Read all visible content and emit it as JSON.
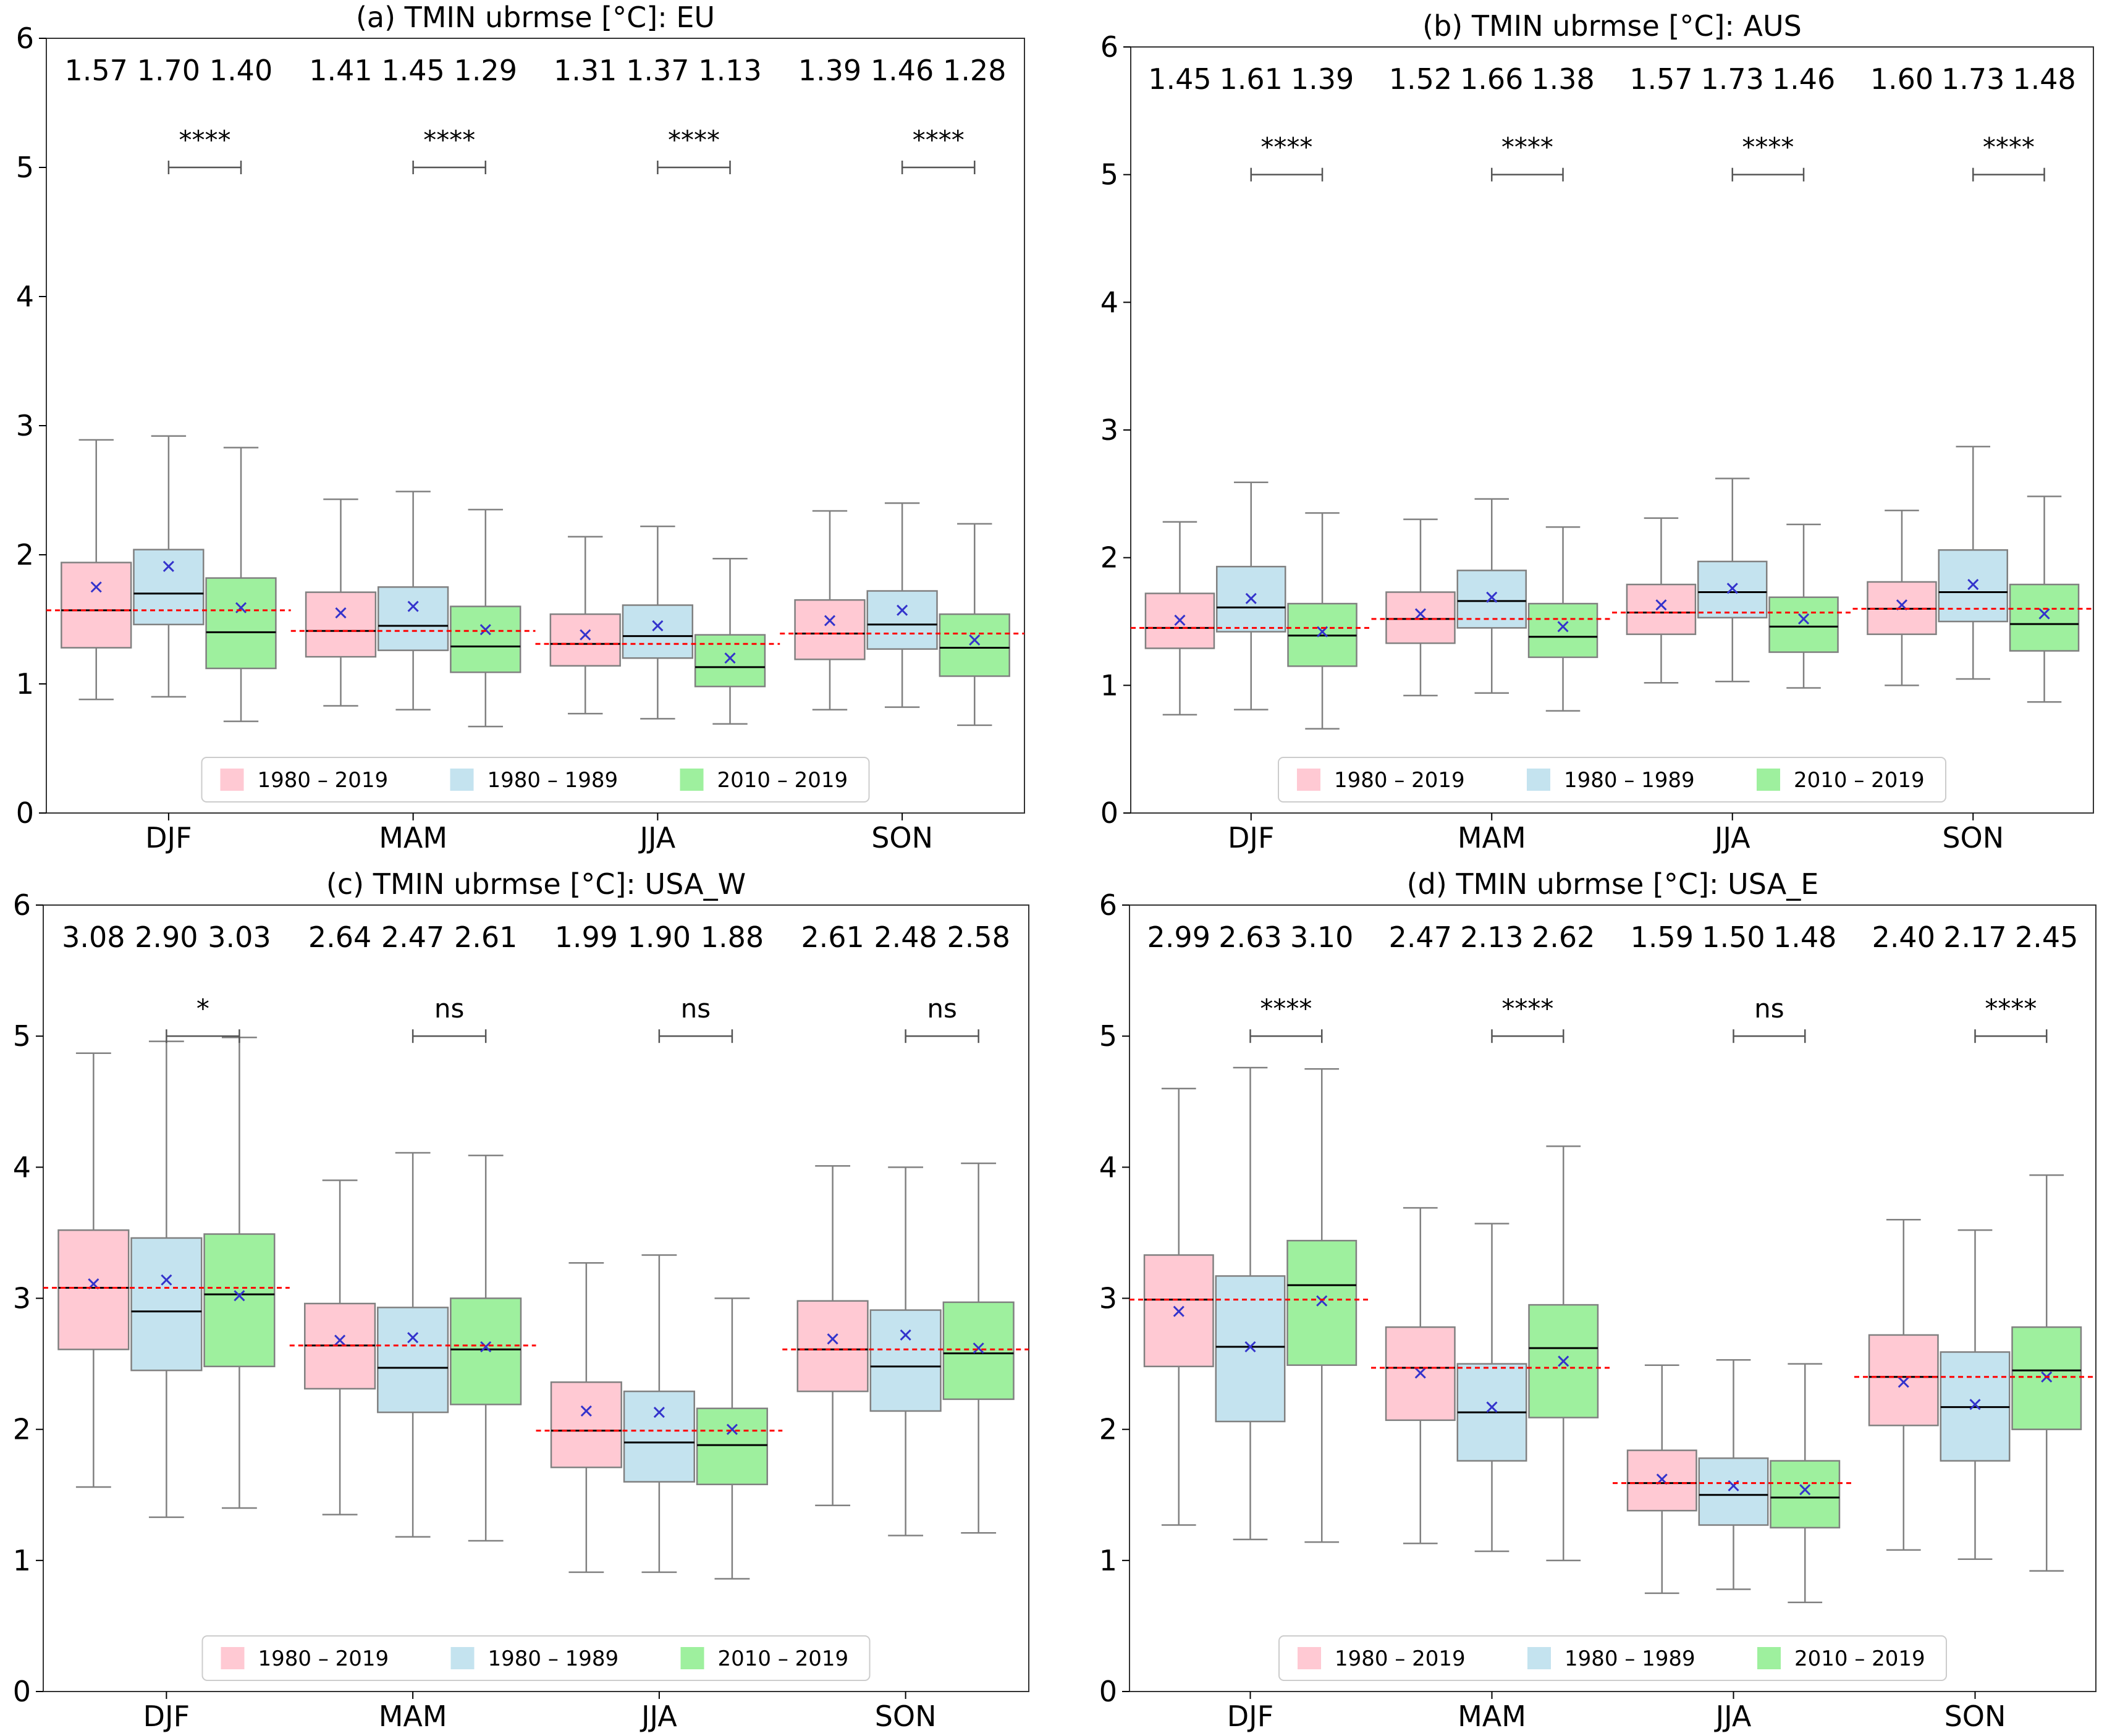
{
  "colors": {
    "period_1980_2019": "#ffc9d3",
    "period_1980_1989": "#c4e3ef",
    "period_2010_2019": "#9ef09e",
    "median_line": "#000000",
    "mean_marker": "#3333cc",
    "reference_line": "#ff0000",
    "whisker": "#808080"
  },
  "chart_data": [
    {
      "type": "box",
      "title": "(a) TMIN ubrmse [°C]: EU",
      "ylim": [
        0,
        6
      ],
      "yticks": [
        "0",
        "1",
        "2",
        "3",
        "4",
        "5",
        "6"
      ],
      "categories": [
        "DJF",
        "MAM",
        "JJA",
        "SON"
      ],
      "legend": [
        "1980 – 2019",
        "1980 – 1989",
        "2010 – 2019"
      ],
      "median_labels": [
        [
          "1.57",
          "1.70",
          "1.40"
        ],
        [
          "1.41",
          "1.45",
          "1.29"
        ],
        [
          "1.31",
          "1.37",
          "1.13"
        ],
        [
          "1.39",
          "1.46",
          "1.28"
        ]
      ],
      "significance": [
        "****",
        "****",
        "****",
        "****"
      ],
      "reference_lines": [
        1.57,
        1.41,
        1.31,
        1.39
      ],
      "boxes": [
        [
          [
            0.88,
            1.28,
            1.57,
            1.94,
            2.89,
            1.75
          ],
          [
            0.9,
            1.46,
            1.7,
            2.04,
            2.92,
            1.91
          ],
          [
            0.71,
            1.12,
            1.4,
            1.82,
            2.83,
            1.59
          ]
        ],
        [
          [
            0.83,
            1.21,
            1.41,
            1.71,
            2.43,
            1.55
          ],
          [
            0.8,
            1.26,
            1.45,
            1.75,
            2.49,
            1.6
          ],
          [
            0.67,
            1.09,
            1.29,
            1.6,
            2.35,
            1.42
          ]
        ],
        [
          [
            0.77,
            1.14,
            1.31,
            1.54,
            2.14,
            1.38
          ],
          [
            0.73,
            1.2,
            1.37,
            1.61,
            2.22,
            1.45
          ],
          [
            0.69,
            0.98,
            1.13,
            1.38,
            1.97,
            1.2
          ]
        ],
        [
          [
            0.8,
            1.19,
            1.39,
            1.65,
            2.34,
            1.49
          ],
          [
            0.82,
            1.27,
            1.46,
            1.72,
            2.4,
            1.57
          ],
          [
            0.68,
            1.06,
            1.28,
            1.54,
            2.24,
            1.34
          ]
        ]
      ]
    },
    {
      "type": "box",
      "title": "(b) TMIN ubrmse [°C]: AUS",
      "ylim": [
        0,
        6
      ],
      "yticks": [
        "0",
        "1",
        "2",
        "3",
        "4",
        "5",
        "6"
      ],
      "categories": [
        "DJF",
        "MAM",
        "JJA",
        "SON"
      ],
      "legend": [
        "1980 – 2019",
        "1980 – 1989",
        "2010 – 2019"
      ],
      "median_labels": [
        [
          "1.45",
          "1.61",
          "1.39"
        ],
        [
          "1.52",
          "1.66",
          "1.38"
        ],
        [
          "1.57",
          "1.73",
          "1.46"
        ],
        [
          "1.60",
          "1.73",
          "1.48"
        ]
      ],
      "significance": [
        "****",
        "****",
        "****",
        "****"
      ],
      "reference_lines": [
        1.45,
        1.52,
        1.57,
        1.6
      ],
      "boxes": [
        [
          [
            0.77,
            1.29,
            1.45,
            1.72,
            2.28,
            1.51
          ],
          [
            0.81,
            1.42,
            1.61,
            1.93,
            2.59,
            1.68
          ],
          [
            0.66,
            1.15,
            1.39,
            1.64,
            2.35,
            1.42
          ]
        ],
        [
          [
            0.92,
            1.33,
            1.52,
            1.73,
            2.3,
            1.56
          ],
          [
            0.94,
            1.45,
            1.66,
            1.9,
            2.46,
            1.69
          ],
          [
            0.8,
            1.22,
            1.38,
            1.64,
            2.24,
            1.46
          ]
        ],
        [
          [
            1.02,
            1.4,
            1.57,
            1.79,
            2.31,
            1.63
          ],
          [
            1.03,
            1.53,
            1.73,
            1.97,
            2.62,
            1.76
          ],
          [
            0.98,
            1.26,
            1.46,
            1.69,
            2.26,
            1.52
          ]
        ],
        [
          [
            1.0,
            1.4,
            1.6,
            1.81,
            2.37,
            1.63
          ],
          [
            1.05,
            1.5,
            1.73,
            2.06,
            2.87,
            1.79
          ],
          [
            0.87,
            1.27,
            1.48,
            1.79,
            2.48,
            1.56
          ]
        ]
      ]
    },
    {
      "type": "box",
      "title": "(c) TMIN ubrmse [°C]: USA_W",
      "ylim": [
        0,
        6
      ],
      "yticks": [
        "0",
        "1",
        "2",
        "3",
        "4",
        "5",
        "6"
      ],
      "categories": [
        "DJF",
        "MAM",
        "JJA",
        "SON"
      ],
      "legend": [
        "1980 – 2019",
        "1980 – 1989",
        "2010 – 2019"
      ],
      "median_labels": [
        [
          "3.08",
          "2.90",
          "3.03"
        ],
        [
          "2.64",
          "2.47",
          "2.61"
        ],
        [
          "1.99",
          "1.90",
          "1.88"
        ],
        [
          "2.61",
          "2.48",
          "2.58"
        ]
      ],
      "significance": [
        "*",
        "ns",
        "ns",
        "ns"
      ],
      "reference_lines": [
        3.08,
        2.64,
        1.99,
        2.61
      ],
      "boxes": [
        [
          [
            1.56,
            2.61,
            3.08,
            3.52,
            4.87,
            3.11
          ],
          [
            1.33,
            2.45,
            2.9,
            3.46,
            4.96,
            3.14
          ],
          [
            1.4,
            2.48,
            3.03,
            3.49,
            4.99,
            3.02
          ]
        ],
        [
          [
            1.35,
            2.31,
            2.64,
            2.96,
            3.9,
            2.68
          ],
          [
            1.18,
            2.13,
            2.47,
            2.93,
            4.11,
            2.7
          ],
          [
            1.15,
            2.19,
            2.61,
            3.0,
            4.09,
            2.63
          ]
        ],
        [
          [
            0.91,
            1.71,
            1.99,
            2.36,
            3.27,
            2.14
          ],
          [
            0.91,
            1.6,
            1.9,
            2.29,
            3.33,
            2.13
          ],
          [
            0.86,
            1.58,
            1.88,
            2.16,
            3.0,
            2.0
          ]
        ],
        [
          [
            1.42,
            2.29,
            2.61,
            2.98,
            4.01,
            2.69
          ],
          [
            1.19,
            2.14,
            2.48,
            2.91,
            4.0,
            2.72
          ],
          [
            1.21,
            2.23,
            2.58,
            2.97,
            4.03,
            2.62
          ]
        ]
      ]
    },
    {
      "type": "box",
      "title": "(d) TMIN ubrmse [°C]: USA_E",
      "ylim": [
        0,
        6
      ],
      "yticks": [
        "0",
        "1",
        "2",
        "3",
        "4",
        "5",
        "6"
      ],
      "categories": [
        "DJF",
        "MAM",
        "JJA",
        "SON"
      ],
      "legend": [
        "1980 – 2019",
        "1980 – 1989",
        "2010 – 2019"
      ],
      "median_labels": [
        [
          "2.99",
          "2.63",
          "3.10"
        ],
        [
          "2.47",
          "2.13",
          "2.62"
        ],
        [
          "1.59",
          "1.50",
          "1.48"
        ],
        [
          "2.40",
          "2.17",
          "2.45"
        ]
      ],
      "significance": [
        "****",
        "****",
        "ns",
        "****"
      ],
      "reference_lines": [
        2.99,
        2.47,
        1.59,
        2.4
      ],
      "boxes": [
        [
          [
            1.27,
            2.48,
            2.99,
            3.33,
            4.6,
            2.9
          ],
          [
            1.16,
            2.06,
            2.63,
            3.17,
            4.76,
            2.63
          ],
          [
            1.14,
            2.49,
            3.1,
            3.44,
            4.75,
            2.98
          ]
        ],
        [
          [
            1.13,
            2.07,
            2.47,
            2.78,
            3.69,
            2.43
          ],
          [
            1.07,
            1.76,
            2.13,
            2.5,
            3.57,
            2.17
          ],
          [
            1.0,
            2.09,
            2.62,
            2.95,
            4.16,
            2.52
          ]
        ],
        [
          [
            0.75,
            1.38,
            1.59,
            1.84,
            2.49,
            1.62
          ],
          [
            0.78,
            1.27,
            1.5,
            1.78,
            2.53,
            1.57
          ],
          [
            0.68,
            1.25,
            1.48,
            1.76,
            2.5,
            1.54
          ]
        ],
        [
          [
            1.08,
            2.03,
            2.4,
            2.72,
            3.6,
            2.36
          ],
          [
            1.01,
            1.76,
            2.17,
            2.59,
            3.52,
            2.19
          ],
          [
            0.92,
            2.0,
            2.45,
            2.78,
            3.94,
            2.4
          ]
        ]
      ]
    }
  ]
}
